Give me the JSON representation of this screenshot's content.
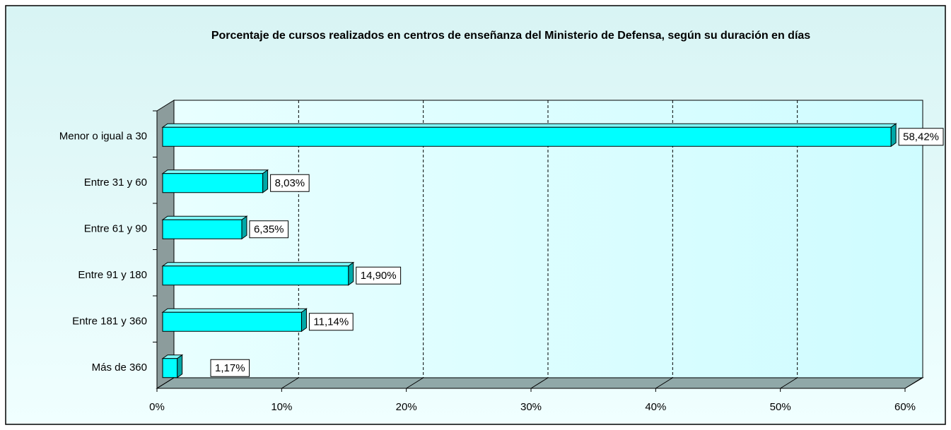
{
  "chart_data": {
    "type": "bar3d_horizontal",
    "title": "Porcentaje de cursos realizados en centros de enseñanza del Ministerio de Defensa, según su duración en días",
    "categories": [
      "Menor o igual a 30",
      "Entre 31 y 60",
      "Entre 61 y 90",
      "Entre 91 y 180",
      "Entre 181 y 360",
      "Más de 360"
    ],
    "values": [
      58.42,
      8.03,
      6.35,
      14.9,
      11.14,
      1.17
    ],
    "value_labels": [
      "58,42%",
      "8,03%",
      "6,35%",
      "14,90%",
      "11,14%",
      "1,17%"
    ],
    "color": "#00ffff",
    "xlim": [
      0,
      60
    ],
    "xticks": [
      {
        "value": 0,
        "label": "0%"
      },
      {
        "value": 10,
        "label": "10%"
      },
      {
        "value": 20,
        "label": "20%"
      },
      {
        "value": 30,
        "label": "30%"
      },
      {
        "value": 40,
        "label": "40%"
      },
      {
        "value": 50,
        "label": "50%"
      },
      {
        "value": 60,
        "label": "60%"
      }
    ],
    "grid": true
  }
}
